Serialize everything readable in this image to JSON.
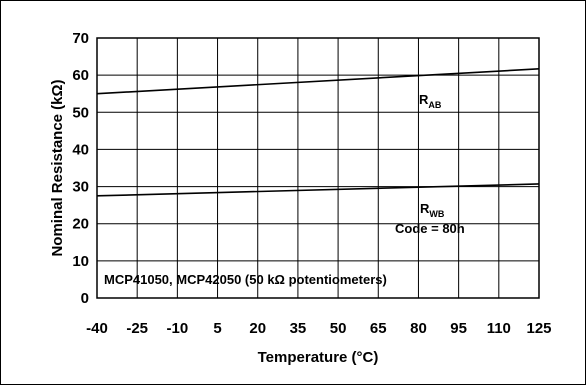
{
  "chart_data": {
    "type": "line",
    "xlabel": "Temperature (°C)",
    "ylabel": "Nominal Resistance (kΩ)",
    "x_ticks": [
      -40,
      -25,
      -10,
      5,
      20,
      35,
      50,
      65,
      80,
      95,
      110,
      125
    ],
    "y_ticks": [
      0,
      10,
      20,
      30,
      40,
      50,
      60,
      70
    ],
    "xlim": [
      -40,
      125
    ],
    "ylim": [
      0,
      70
    ],
    "grid": true,
    "series": [
      {
        "label_main": "R",
        "label_sub": "AB",
        "x": [
          -40,
          125
        ],
        "y": [
          55,
          61.7
        ]
      },
      {
        "label_main": "R",
        "label_sub": "WB",
        "x": [
          -40,
          125
        ],
        "y": [
          27.5,
          30.7
        ]
      }
    ],
    "annotations": {
      "code": "Code = 80h",
      "device": "MCP41050, MCP42050 (50 kΩ potentiometers)"
    }
  }
}
